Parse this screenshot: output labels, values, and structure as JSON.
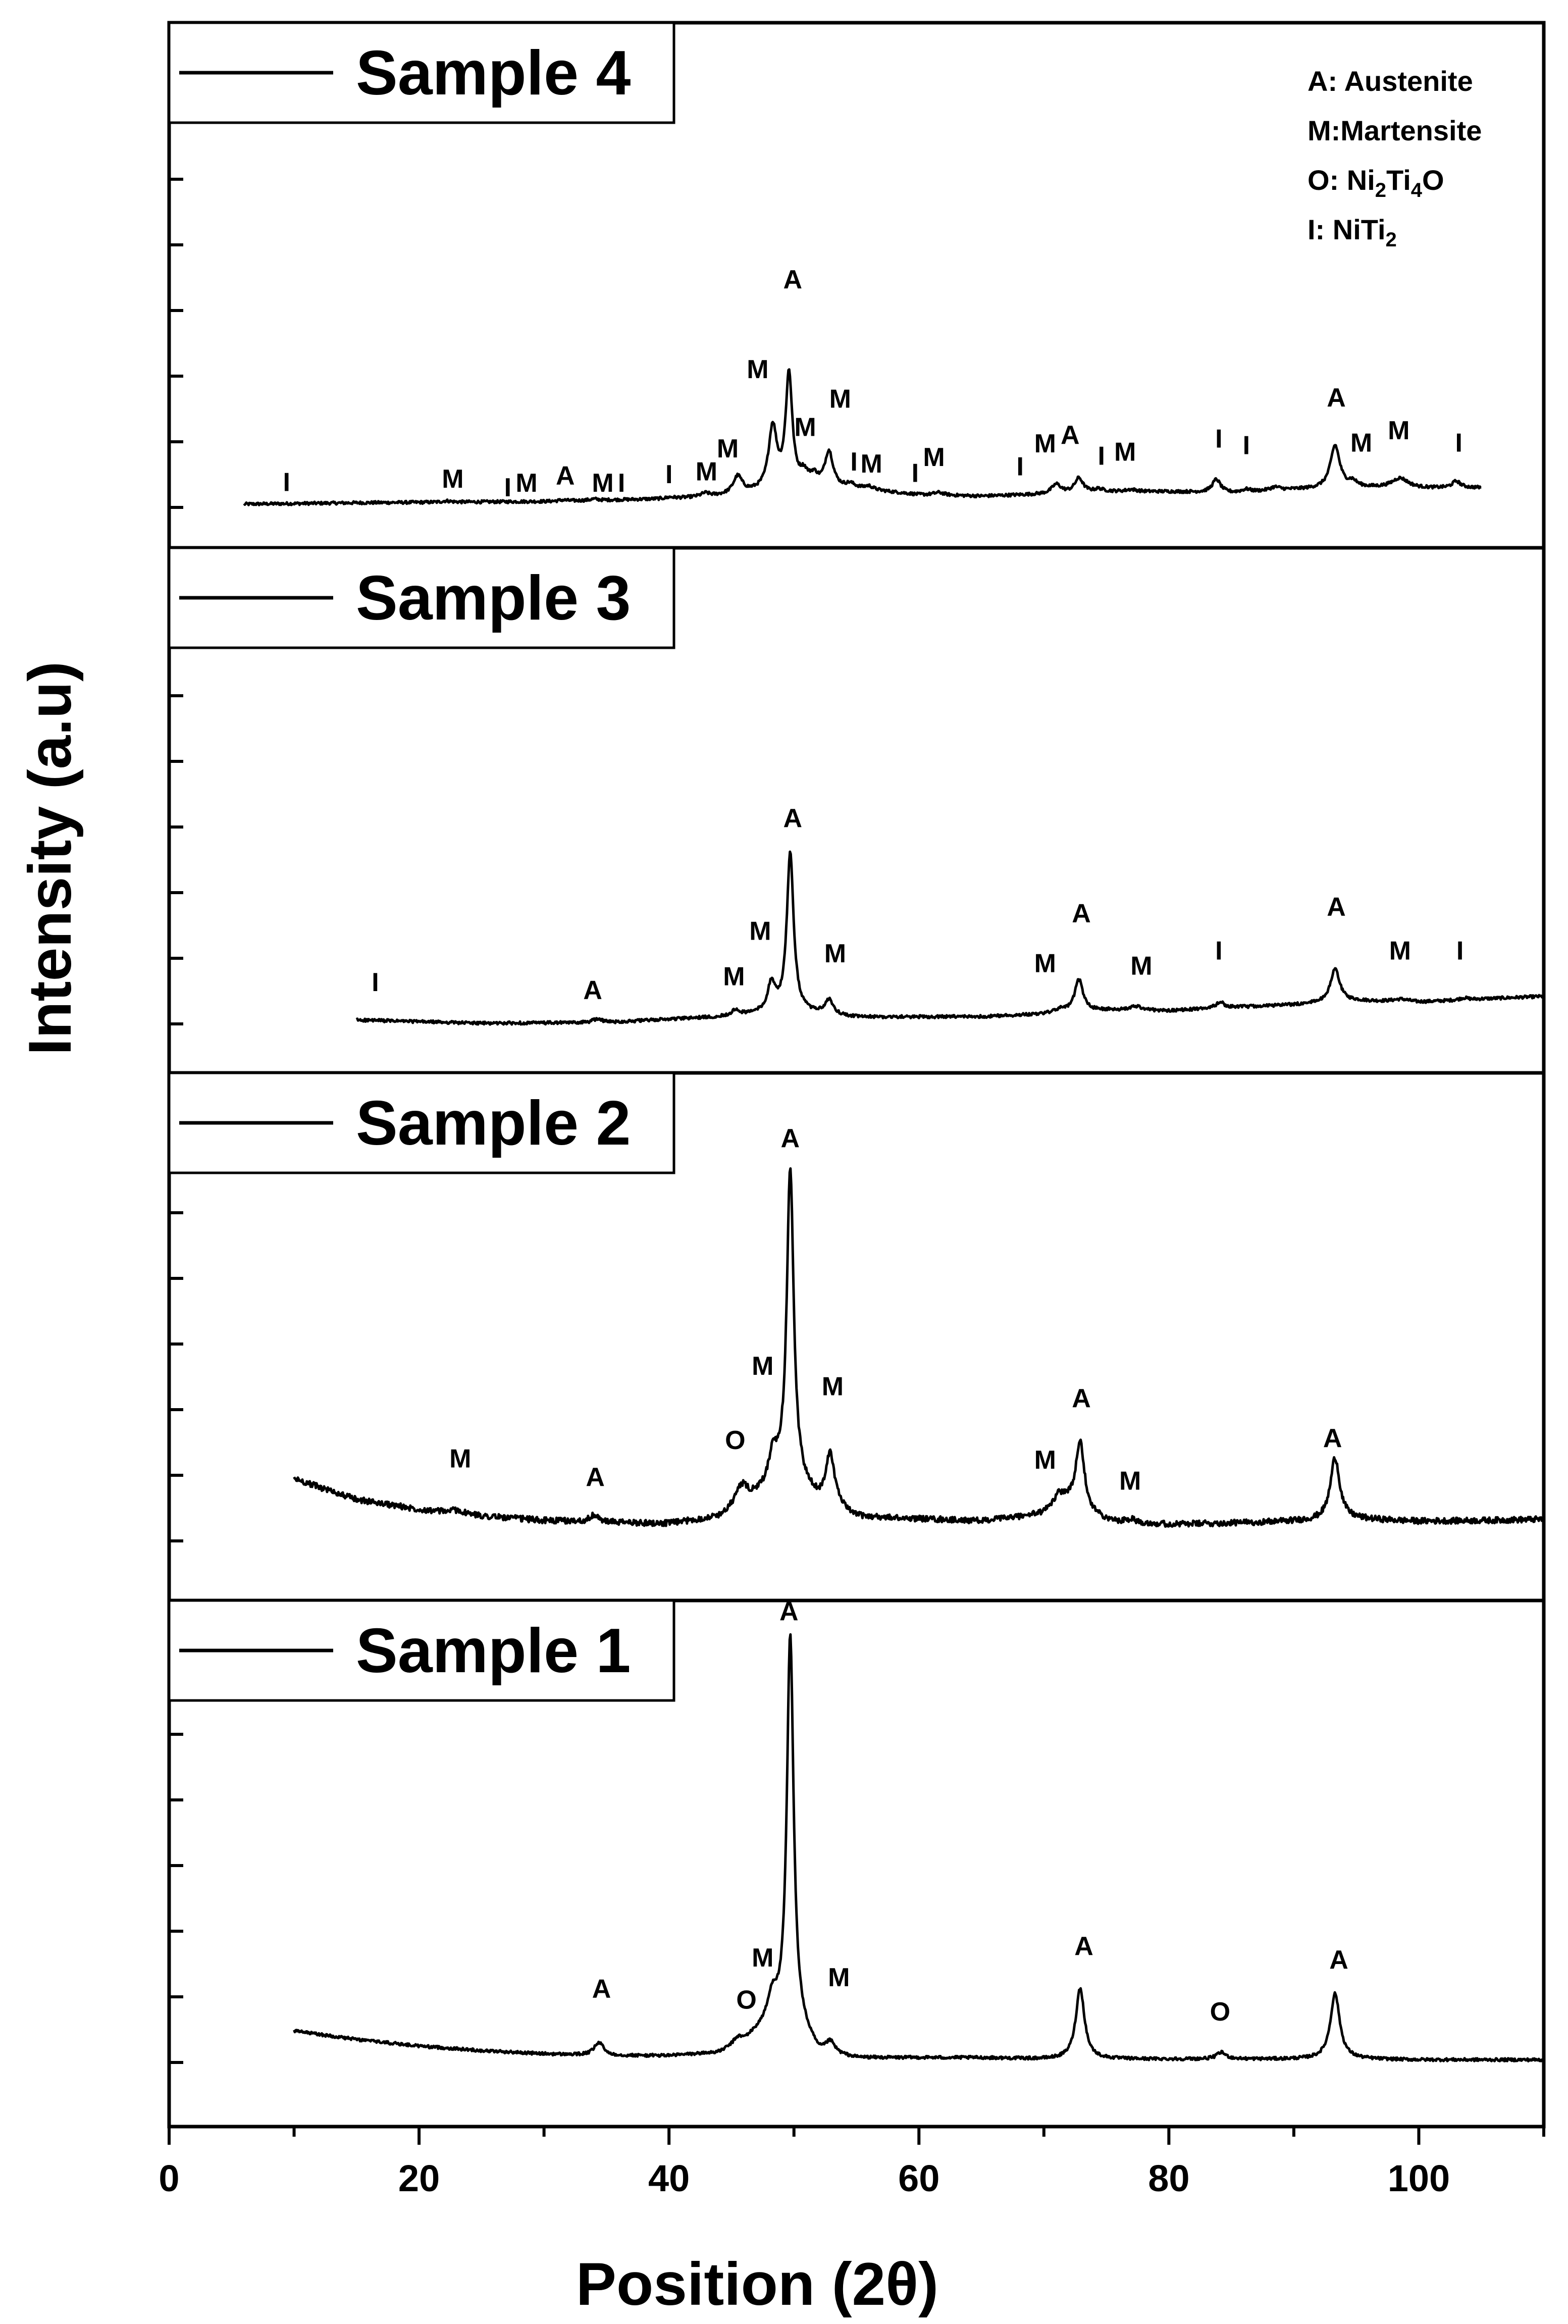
{
  "chart_data": {
    "type": "line",
    "title": "",
    "xlabel": "Position (2θ)",
    "ylabel": "Intensity (a.u)",
    "xlim": [
      0,
      110
    ],
    "x_ticks": [
      "0",
      "20",
      "40",
      "60",
      "80",
      "100"
    ],
    "phase_key": [
      {
        "main": "A: Austenite"
      },
      {
        "main": "M:Martensite"
      },
      {
        "main": "O: Ni",
        "sub1": "2",
        "mid": "Ti",
        "sub2": "4",
        "tail": "O"
      },
      {
        "main": "I: NiTi",
        "sub1": "2"
      }
    ],
    "samples": [
      {
        "name": "Sample 4",
        "legend": "Sample 4",
        "x_range": [
          6,
          105
        ],
        "baseline": [
          [
            6,
            0.05
          ],
          [
            15,
            0.07
          ],
          [
            30,
            0.09
          ],
          [
            40,
            0.13
          ],
          [
            45,
            0.18
          ],
          [
            50,
            0.28
          ],
          [
            55,
            0.28
          ],
          [
            60,
            0.19
          ],
          [
            65,
            0.17
          ],
          [
            70,
            0.2
          ],
          [
            75,
            0.24
          ],
          [
            80,
            0.24
          ],
          [
            85,
            0.22
          ],
          [
            90,
            0.27
          ],
          [
            95,
            0.3
          ],
          [
            100,
            0.29
          ],
          [
            105,
            0.3
          ]
        ],
        "peaks": [
          {
            "x": 22.2,
            "h": 0.02,
            "w": 0.4
          },
          {
            "x": 31.5,
            "h": 0.015,
            "w": 0.4
          },
          {
            "x": 34.0,
            "h": 0.02,
            "w": 0.4
          },
          {
            "x": 40.1,
            "h": 0.02,
            "w": 0.4
          },
          {
            "x": 42.9,
            "h": 0.05,
            "w": 0.4
          },
          {
            "x": 45.5,
            "h": 0.27,
            "w": 0.45
          },
          {
            "x": 48.3,
            "h": 0.95,
            "w": 0.4
          },
          {
            "x": 49.6,
            "h": 1.72,
            "w": 0.32
          },
          {
            "x": 50.8,
            "h": 0.18,
            "w": 0.4
          },
          {
            "x": 51.6,
            "h": 0.15,
            "w": 0.4
          },
          {
            "x": 52.8,
            "h": 0.55,
            "w": 0.4
          },
          {
            "x": 54.5,
            "h": 0.06,
            "w": 0.4
          },
          {
            "x": 56.0,
            "h": 0.05,
            "w": 0.4
          },
          {
            "x": 61.6,
            "h": 0.04,
            "w": 0.5
          },
          {
            "x": 71.0,
            "h": 0.14,
            "w": 0.45
          },
          {
            "x": 72.8,
            "h": 0.22,
            "w": 0.4
          },
          {
            "x": 74.4,
            "h": 0.04,
            "w": 0.4
          },
          {
            "x": 77.0,
            "h": 0.03,
            "w": 0.5
          },
          {
            "x": 83.8,
            "h": 0.2,
            "w": 0.4
          },
          {
            "x": 86.2,
            "h": 0.04,
            "w": 0.4
          },
          {
            "x": 88.5,
            "h": 0.05,
            "w": 0.5
          },
          {
            "x": 93.3,
            "h": 0.65,
            "w": 0.45
          },
          {
            "x": 94.7,
            "h": 0.08,
            "w": 0.4
          },
          {
            "x": 98.5,
            "h": 0.15,
            "w": 0.8
          },
          {
            "x": 103.0,
            "h": 0.1,
            "w": 0.4
          }
        ],
        "peak_labels": [
          {
            "label": "I",
            "x": 9.4,
            "y": 0.25
          },
          {
            "label": "M",
            "x": 22.7,
            "y": 0.3
          },
          {
            "label": "I",
            "x": 27.1,
            "y": 0.17
          },
          {
            "label": "M",
            "x": 28.6,
            "y": 0.24
          },
          {
            "label": "A",
            "x": 31.7,
            "y": 0.35
          },
          {
            "label": "M",
            "x": 34.7,
            "y": 0.24
          },
          {
            "label": "I",
            "x": 36.2,
            "y": 0.24
          },
          {
            "label": "I",
            "x": 40.0,
            "y": 0.37
          },
          {
            "label": "M",
            "x": 43.0,
            "y": 0.41
          },
          {
            "label": "M",
            "x": 44.7,
            "y": 0.76
          },
          {
            "label": "M",
            "x": 47.1,
            "y": 1.97
          },
          {
            "label": "A",
            "x": 49.9,
            "y": 3.34
          },
          {
            "label": "M",
            "x": 50.9,
            "y": 1.09
          },
          {
            "label": "M",
            "x": 53.7,
            "y": 1.52
          },
          {
            "label": "I",
            "x": 54.8,
            "y": 0.56
          },
          {
            "label": "M",
            "x": 56.2,
            "y": 0.53
          },
          {
            "label": "I",
            "x": 59.7,
            "y": 0.39
          },
          {
            "label": "M",
            "x": 61.2,
            "y": 0.63
          },
          {
            "label": "I",
            "x": 68.1,
            "y": 0.49
          },
          {
            "label": "M",
            "x": 70.1,
            "y": 0.84
          },
          {
            "label": "A",
            "x": 72.1,
            "y": 0.97
          },
          {
            "label": "I",
            "x": 74.6,
            "y": 0.65
          },
          {
            "label": "M",
            "x": 76.5,
            "y": 0.71
          },
          {
            "label": "I",
            "x": 84.0,
            "y": 0.91
          },
          {
            "label": "I",
            "x": 86.2,
            "y": 0.81
          },
          {
            "label": "A",
            "x": 93.4,
            "y": 1.54
          },
          {
            "label": "M",
            "x": 95.4,
            "y": 0.85
          },
          {
            "label": "M",
            "x": 98.4,
            "y": 1.04
          },
          {
            "label": "I",
            "x": 103.2,
            "y": 0.85
          }
        ]
      },
      {
        "name": "Sample 3",
        "legend": "Sample 3",
        "x_range": [
          15,
          110
        ],
        "baseline": [
          [
            15,
            0.06
          ],
          [
            25,
            0.01
          ],
          [
            35,
            0.02
          ],
          [
            40,
            0.07
          ],
          [
            45,
            0.11
          ],
          [
            48,
            0.17
          ],
          [
            50,
            0.17
          ],
          [
            55,
            0.1
          ],
          [
            65,
            0.11
          ],
          [
            70,
            0.15
          ],
          [
            75,
            0.21
          ],
          [
            80,
            0.2
          ],
          [
            85,
            0.25
          ],
          [
            90,
            0.29
          ],
          [
            95,
            0.35
          ],
          [
            100,
            0.33
          ],
          [
            105,
            0.38
          ],
          [
            110,
            0.42
          ]
        ],
        "peaks": [
          {
            "x": 34.3,
            "h": 0.06,
            "w": 0.45
          },
          {
            "x": 45.3,
            "h": 0.08,
            "w": 0.45
          },
          {
            "x": 48.2,
            "h": 0.42,
            "w": 0.35
          },
          {
            "x": 49.7,
            "h": 2.42,
            "w": 0.33
          },
          {
            "x": 52.8,
            "h": 0.22,
            "w": 0.4
          },
          {
            "x": 71.3,
            "h": 0.05,
            "w": 0.5
          },
          {
            "x": 72.8,
            "h": 0.49,
            "w": 0.4
          },
          {
            "x": 77.4,
            "h": 0.06,
            "w": 0.6
          },
          {
            "x": 84.1,
            "h": 0.09,
            "w": 0.4
          },
          {
            "x": 93.3,
            "h": 0.5,
            "w": 0.45
          },
          {
            "x": 98.6,
            "h": 0.04,
            "w": 0.8
          },
          {
            "x": 103.6,
            "h": 0.03,
            "w": 0.4
          }
        ],
        "peak_labels": [
          {
            "label": "I",
            "x": 16.5,
            "y": 0.5
          },
          {
            "label": "A",
            "x": 33.9,
            "y": 0.38
          },
          {
            "label": "M",
            "x": 45.2,
            "y": 0.59
          },
          {
            "label": "M",
            "x": 47.3,
            "y": 1.28
          },
          {
            "label": "A",
            "x": 49.9,
            "y": 3.0
          },
          {
            "label": "M",
            "x": 53.3,
            "y": 0.94
          },
          {
            "label": "M",
            "x": 70.1,
            "y": 0.79
          },
          {
            "label": "A",
            "x": 73.0,
            "y": 1.55
          },
          {
            "label": "M",
            "x": 77.8,
            "y": 0.75
          },
          {
            "label": "I",
            "x": 84.0,
            "y": 0.98
          },
          {
            "label": "A",
            "x": 93.4,
            "y": 1.65
          },
          {
            "label": "M",
            "x": 98.5,
            "y": 0.98
          },
          {
            "label": "I",
            "x": 103.3,
            "y": 0.98
          }
        ]
      },
      {
        "name": "Sample 2",
        "legend": "Sample 2",
        "x_range": [
          10,
          110
        ],
        "baseline": [
          [
            10,
            0.95
          ],
          [
            15,
            0.63
          ],
          [
            20,
            0.48
          ],
          [
            25,
            0.38
          ],
          [
            30,
            0.31
          ],
          [
            35,
            0.28
          ],
          [
            40,
            0.26
          ],
          [
            44,
            0.35
          ],
          [
            47,
            0.65
          ],
          [
            49,
            0.9
          ],
          [
            50,
            0.9
          ],
          [
            52,
            0.55
          ],
          [
            55,
            0.35
          ],
          [
            60,
            0.33
          ],
          [
            65,
            0.3
          ],
          [
            70,
            0.4
          ],
          [
            72,
            0.55
          ],
          [
            75,
            0.3
          ],
          [
            80,
            0.25
          ],
          [
            85,
            0.27
          ],
          [
            90,
            0.3
          ],
          [
            95,
            0.33
          ],
          [
            100,
            0.3
          ],
          [
            105,
            0.31
          ],
          [
            110,
            0.33
          ]
        ],
        "peaks": [
          {
            "x": 23.0,
            "h": 0.05,
            "w": 0.6
          },
          {
            "x": 34.0,
            "h": 0.1,
            "w": 0.45
          },
          {
            "x": 45.8,
            "h": 0.3,
            "w": 0.6
          },
          {
            "x": 48.3,
            "h": 0.43,
            "w": 0.4
          },
          {
            "x": 49.7,
            "h": 4.75,
            "w": 0.33
          },
          {
            "x": 52.9,
            "h": 0.82,
            "w": 0.45
          },
          {
            "x": 71.2,
            "h": 0.2,
            "w": 0.6
          },
          {
            "x": 72.9,
            "h": 1.05,
            "w": 0.4
          },
          {
            "x": 77.0,
            "h": 0.05,
            "w": 0.4
          },
          {
            "x": 93.3,
            "h": 0.95,
            "w": 0.45
          }
        ],
        "peak_labels": [
          {
            "label": "M",
            "x": 23.3,
            "y": 1.12
          },
          {
            "label": "A",
            "x": 34.1,
            "y": 0.84
          },
          {
            "label": "O",
            "x": 45.3,
            "y": 1.4
          },
          {
            "label": "M",
            "x": 47.5,
            "y": 2.53
          },
          {
            "label": "A",
            "x": 49.7,
            "y": 6.0
          },
          {
            "label": "M",
            "x": 53.1,
            "y": 2.22
          },
          {
            "label": "M",
            "x": 70.1,
            "y": 1.1
          },
          {
            "label": "A",
            "x": 73.0,
            "y": 2.04
          },
          {
            "label": "M",
            "x": 76.9,
            "y": 0.78
          },
          {
            "label": "A",
            "x": 93.1,
            "y": 1.43
          }
        ]
      },
      {
        "name": "Sample 1",
        "legend": "Sample 1",
        "x_range": [
          10,
          110
        ],
        "baseline": [
          [
            10,
            0.48
          ],
          [
            15,
            0.35
          ],
          [
            20,
            0.25
          ],
          [
            25,
            0.18
          ],
          [
            30,
            0.13
          ],
          [
            35,
            0.1
          ],
          [
            40,
            0.1
          ],
          [
            44,
            0.14
          ],
          [
            46,
            0.3
          ],
          [
            48,
            0.6
          ],
          [
            50,
            0.6
          ],
          [
            52,
            0.12
          ],
          [
            55,
            0.06
          ],
          [
            60,
            0.07
          ],
          [
            65,
            0.07
          ],
          [
            70,
            0.05
          ],
          [
            75,
            0.05
          ],
          [
            80,
            0.05
          ],
          [
            85,
            0.05
          ],
          [
            90,
            0.05
          ],
          [
            95,
            0.05
          ],
          [
            100,
            0.04
          ],
          [
            105,
            0.04
          ],
          [
            110,
            0.04
          ]
        ],
        "peaks": [
          {
            "x": 34.4,
            "h": 0.2,
            "w": 0.45
          },
          {
            "x": 45.5,
            "h": 0.1,
            "w": 0.45
          },
          {
            "x": 48.3,
            "h": 0.35,
            "w": 0.4
          },
          {
            "x": 49.7,
            "h": 5.9,
            "w": 0.32
          },
          {
            "x": 52.9,
            "h": 0.18,
            "w": 0.45
          },
          {
            "x": 72.9,
            "h": 1.08,
            "w": 0.42
          },
          {
            "x": 84.2,
            "h": 0.1,
            "w": 0.45
          },
          {
            "x": 93.3,
            "h": 1.0,
            "w": 0.45
          }
        ],
        "peak_labels": [
          {
            "label": "A",
            "x": 34.6,
            "y": 0.99
          },
          {
            "label": "O",
            "x": 46.2,
            "y": 0.82
          },
          {
            "label": "M",
            "x": 47.5,
            "y": 1.46
          },
          {
            "label": "A",
            "x": 49.6,
            "y": 6.74
          },
          {
            "label": "M",
            "x": 53.6,
            "y": 1.16
          },
          {
            "label": "A",
            "x": 73.2,
            "y": 1.64
          },
          {
            "label": "O",
            "x": 84.1,
            "y": 0.64
          },
          {
            "label": "A",
            "x": 93.6,
            "y": 1.43
          }
        ]
      }
    ]
  }
}
